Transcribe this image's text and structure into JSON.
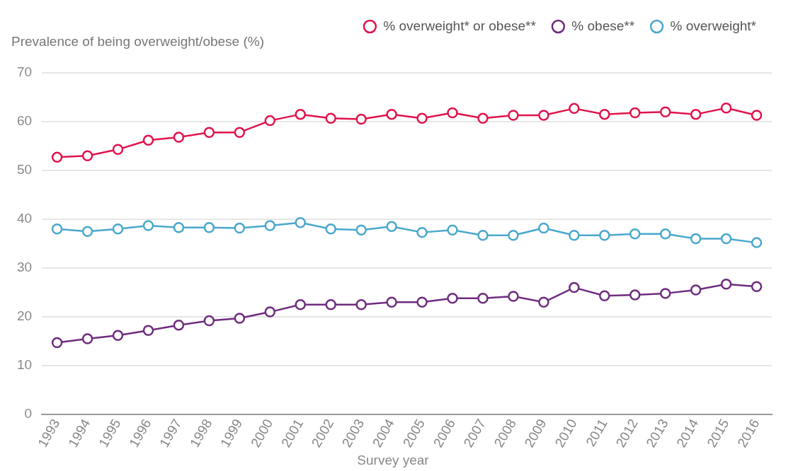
{
  "chart_data": {
    "type": "line",
    "xlabel": "Survey year",
    "ylabel": "Prevalence of being overweight/obese (%)",
    "categories": [
      "1993",
      "1994",
      "1995",
      "1996",
      "1997",
      "1998",
      "1999",
      "2000",
      "2001",
      "2002",
      "2003",
      "2004",
      "2005",
      "2006",
      "2007",
      "2008",
      "2009",
      "2010",
      "2011",
      "2012",
      "2013",
      "2014",
      "2015",
      "2016"
    ],
    "series": [
      {
        "name": "% overweight* or obese**",
        "color": "#e0144c",
        "values": [
          52.7,
          53.0,
          54.3,
          56.2,
          56.8,
          57.8,
          57.8,
          60.2,
          61.5,
          60.7,
          60.5,
          61.5,
          60.7,
          61.8,
          60.7,
          61.3,
          61.3,
          62.7,
          61.5,
          61.8,
          62.0,
          61.5,
          62.8,
          61.3
        ]
      },
      {
        "name": "% obese**",
        "color": "#6f2c7f",
        "values": [
          14.7,
          15.5,
          16.2,
          17.2,
          18.3,
          19.2,
          19.7,
          21.0,
          22.5,
          22.5,
          22.5,
          23.0,
          23.0,
          23.8,
          23.8,
          24.2,
          23.0,
          26.0,
          24.3,
          24.5,
          24.8,
          25.5,
          26.7,
          26.2
        ]
      },
      {
        "name": "% overweight*",
        "color": "#4aa8cc",
        "values": [
          38.0,
          37.5,
          38.0,
          38.7,
          38.3,
          38.3,
          38.2,
          38.7,
          39.3,
          38.0,
          37.8,
          38.5,
          37.3,
          37.8,
          36.7,
          36.7,
          38.2,
          36.7,
          36.7,
          37.0,
          37.0,
          36.0,
          36.0,
          35.2
        ]
      }
    ],
    "ylim": [
      0,
      70
    ],
    "yticks": [
      0,
      10,
      20,
      30,
      40,
      50,
      60,
      70
    ],
    "grid": "y",
    "legend": "top right",
    "marker": "circle",
    "line_style": "solid"
  }
}
